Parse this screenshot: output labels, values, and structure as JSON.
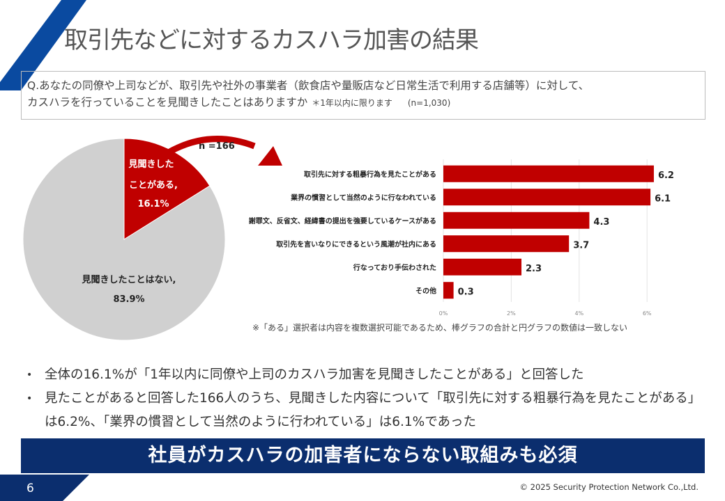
{
  "title": "取引先などに対するカスハラ加害の結果",
  "question": {
    "line1": "Q.あなたの同僚や上司などが、取引先や社外の事業者（飲食店や量販店など日常生活で利用する店舗等）に対して、",
    "line2": "カスハラを行っていることを見聞きしたことはありますか",
    "limit": "＊1年以内に限ります",
    "n": "(n=1,030)"
  },
  "chart_data": [
    {
      "type": "pie",
      "slices": [
        {
          "label_line1": "見聞きした",
          "label_line2": "ことがある,",
          "value": 16.1,
          "value_label": "16.1%",
          "color": "#c00000"
        },
        {
          "label_line1": "見聞きしたことはない,",
          "label_line2": "",
          "value": 83.9,
          "value_label": "83.9%",
          "color": "#d0d0d0"
        }
      ]
    },
    {
      "type": "bar",
      "orientation": "horizontal",
      "subset_label": "n =166",
      "categories": [
        "取引先に対する粗暴行為を見たことがある",
        "業界の慣習として当然のように行なわれている",
        "謝罪文、反省文、経緯書の提出を強要しているケースがある",
        "取引先を言いなりにできるという風潮が社内にある",
        "行なっており手伝わされた",
        "その他"
      ],
      "values": [
        6.2,
        6.1,
        4.3,
        3.7,
        2.3,
        0.3
      ],
      "xticks": [
        "0%",
        "2%",
        "4%",
        "6%"
      ],
      "xlim": [
        0,
        6.5
      ],
      "grid": true,
      "color": "#c00000"
    }
  ],
  "note": "※「ある」選択者は内容を複数選択可能であるため、棒グラフの合計と円グラフの数値は一致しない",
  "bullets": [
    "全体の16.1%が「1年以内に同僚や上司のカスハラ加害を見聞きしたことがある」と回答した",
    "見たことがあると回答した166人のうち、見聞きした内容について「取引先に対する粗暴行為を見たことがある」は6.2%、「業界の慣習として当然のように行われている」は6.1%であった"
  ],
  "banner": "社員がカスハラの加害者にならない取組みも必須",
  "page_number": "6",
  "copyright": "© 2025 Security Protection Network Co.,Ltd.",
  "colors": {
    "brand_blue": "#0b2e6e",
    "stripe_blue": "#0a4aa0",
    "accent_red": "#c00000"
  }
}
